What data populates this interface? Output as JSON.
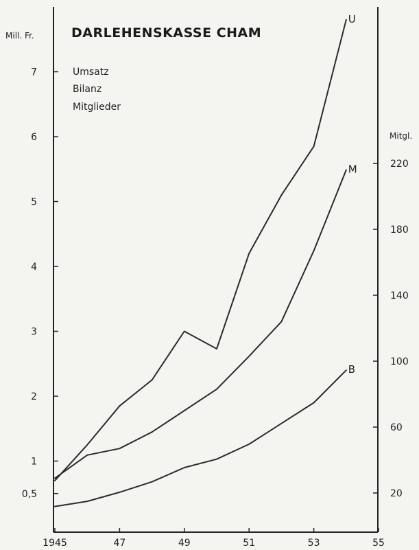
{
  "chart_data": {
    "type": "line",
    "title": "DARLEHENSKASSE CHAM",
    "legend_entries": [
      "Umsatz",
      "Bilanz",
      "Mitglieder"
    ],
    "y_left_label": "Mill. Fr.",
    "y_right_label": "Mitgl.",
    "x": [
      1945,
      1946,
      1947,
      1948,
      1949,
      1950,
      1951,
      1952,
      1953,
      1954
    ],
    "x_tick_labels": [
      "1945",
      "47",
      "49",
      "51",
      "53",
      "55"
    ],
    "x_tick_values": [
      1945,
      1947,
      1949,
      1951,
      1953,
      1955
    ],
    "xlim": [
      1945,
      1955
    ],
    "y_left_ticks": [
      {
        "value": 0.5,
        "label": "0,5"
      },
      {
        "value": 1,
        "label": "1"
      },
      {
        "value": 2,
        "label": "2"
      },
      {
        "value": 3,
        "label": "3"
      },
      {
        "value": 4,
        "label": "4"
      },
      {
        "value": 5,
        "label": "5"
      },
      {
        "value": 6,
        "label": "6"
      },
      {
        "value": 7,
        "label": "7"
      }
    ],
    "y_right_ticks": [
      20,
      60,
      100,
      140,
      180,
      220
    ],
    "ylim_left": [
      0,
      8
    ],
    "ylim_right": [
      0,
      320
    ],
    "series": [
      {
        "label": "U",
        "axis": "left",
        "values": [
          0.7,
          1.25,
          1.85,
          2.25,
          3.0,
          2.73,
          4.2,
          5.1,
          5.85,
          7.8
        ]
      },
      {
        "label": "M",
        "axis": "right",
        "values": [
          29,
          43,
          47,
          57,
          70,
          83,
          103,
          124,
          167,
          216
        ]
      },
      {
        "label": "B",
        "axis": "left",
        "values": [
          0.3,
          0.38,
          0.52,
          0.68,
          0.9,
          1.03,
          1.26,
          1.58,
          1.9,
          2.4
        ]
      }
    ]
  }
}
